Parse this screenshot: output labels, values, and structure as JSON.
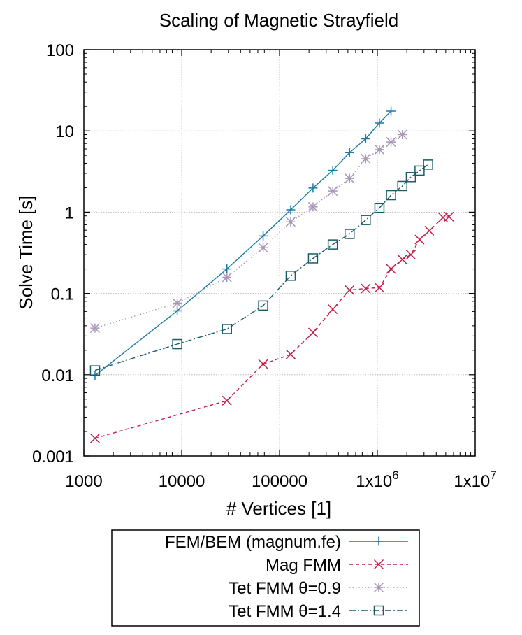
{
  "chart_data": {
    "type": "line",
    "title": "Scaling of Magnetic Strayfield",
    "xlabel": "# Vertices [1]",
    "ylabel": "Solve Time [s]",
    "xscale": "log",
    "yscale": "log",
    "xlim": [
      1000,
      10000000
    ],
    "ylim": [
      0.001,
      100
    ],
    "grid": true,
    "legend_position": "below-chart",
    "x_ticks": [
      {
        "value": 1000,
        "label": "1000"
      },
      {
        "value": 10000,
        "label": "10000"
      },
      {
        "value": 100000,
        "label": "100000"
      },
      {
        "value": 1000000,
        "label": "1x10",
        "exp": "6"
      },
      {
        "value": 10000000,
        "label": "1x10",
        "exp": "7"
      }
    ],
    "y_ticks": [
      {
        "value": 0.001,
        "label": "0.001"
      },
      {
        "value": 0.01,
        "label": "0.01"
      },
      {
        "value": 0.1,
        "label": "0.1"
      },
      {
        "value": 1,
        "label": "1"
      },
      {
        "value": 10,
        "label": "10"
      },
      {
        "value": 100,
        "label": "100"
      }
    ],
    "series": [
      {
        "name": "FEM/BEM (magnum.fe)",
        "color": "#1a7aa8",
        "marker": "plus",
        "dash": "",
        "points": [
          [
            1300,
            0.0098
          ],
          [
            9000,
            0.061
          ],
          [
            29000,
            0.2
          ],
          [
            68000,
            0.51
          ],
          [
            130000,
            1.07
          ],
          [
            220000,
            1.98
          ],
          [
            350000,
            3.27
          ],
          [
            520000,
            5.4
          ],
          [
            760000,
            8.0
          ],
          [
            1050000,
            12.5
          ],
          [
            1380000,
            17.5
          ]
        ]
      },
      {
        "name": "Mag FMM",
        "color": "#c0204a",
        "marker": "x",
        "dash": "5,4",
        "points": [
          [
            1300,
            0.00165
          ],
          [
            29000,
            0.0048
          ],
          [
            68000,
            0.0135
          ],
          [
            130000,
            0.0178
          ],
          [
            220000,
            0.033
          ],
          [
            350000,
            0.064
          ],
          [
            520000,
            0.11
          ],
          [
            760000,
            0.115
          ],
          [
            1050000,
            0.118
          ],
          [
            1380000,
            0.2
          ],
          [
            1800000,
            0.262
          ],
          [
            2200000,
            0.3
          ],
          [
            2700000,
            0.46
          ],
          [
            3400000,
            0.59
          ],
          [
            4700000,
            0.86
          ],
          [
            5400000,
            0.88
          ]
        ]
      },
      {
        "name": "Tet FMM θ=0.9",
        "color": "#a897b8",
        "marker": "star",
        "dash": "1.5,3",
        "points": [
          [
            1300,
            0.0375
          ],
          [
            9000,
            0.076
          ],
          [
            29000,
            0.158
          ],
          [
            68000,
            0.365
          ],
          [
            130000,
            0.76
          ],
          [
            220000,
            1.16
          ],
          [
            350000,
            1.82
          ],
          [
            520000,
            2.6
          ],
          [
            760000,
            4.55
          ],
          [
            1050000,
            5.9
          ],
          [
            1380000,
            7.3
          ],
          [
            1800000,
            9.0
          ]
        ]
      },
      {
        "name": "Tet FMM θ=1.4",
        "color": "#1a5c66",
        "marker": "square",
        "dash": "9,3,2,3",
        "points": [
          [
            1300,
            0.0113
          ],
          [
            9000,
            0.0238
          ],
          [
            29000,
            0.0365
          ],
          [
            68000,
            0.071
          ],
          [
            130000,
            0.165
          ],
          [
            220000,
            0.27
          ],
          [
            350000,
            0.4
          ],
          [
            520000,
            0.54
          ],
          [
            760000,
            0.8
          ],
          [
            1050000,
            1.13
          ],
          [
            1380000,
            1.62
          ],
          [
            1800000,
            2.1
          ],
          [
            2200000,
            2.7
          ],
          [
            2700000,
            3.25
          ],
          [
            3300000,
            3.85
          ]
        ]
      }
    ]
  }
}
